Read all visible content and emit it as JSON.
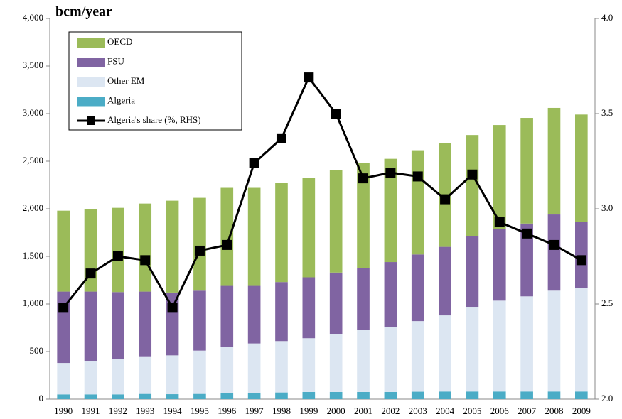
{
  "chart_data": {
    "type": "stacked_bar_line",
    "title": "bcm/year",
    "categories": [
      "1990",
      "1991",
      "1992",
      "1993",
      "1994",
      "1995",
      "1996",
      "1997",
      "1998",
      "1999",
      "2000",
      "2001",
      "2002",
      "2003",
      "2004",
      "2005",
      "2006",
      "2007",
      "2008",
      "2009"
    ],
    "series": [
      {
        "name": "OECD",
        "color": "#9bbb59",
        "values": [
          850,
          870,
          885,
          925,
          965,
          975,
          1030,
          1030,
          1040,
          1045,
          1075,
          1100,
          1085,
          1095,
          1090,
          1065,
          1090,
          1110,
          1120,
          1130
        ]
      },
      {
        "name": "FSU",
        "color": "#8064a2",
        "values": [
          750,
          730,
          705,
          680,
          660,
          630,
          645,
          605,
          620,
          640,
          645,
          650,
          680,
          700,
          720,
          740,
          755,
          765,
          800,
          690
        ]
      },
      {
        "name": "Other EM",
        "color": "#dce6f2",
        "values": [
          330,
          350,
          370,
          395,
          408,
          455,
          485,
          520,
          540,
          565,
          610,
          655,
          685,
          742,
          800,
          890,
          955,
          1000,
          1060,
          1090
        ]
      },
      {
        "name": "Algeria",
        "color": "#4bacc6",
        "values": [
          50,
          50,
          50,
          55,
          52,
          55,
          60,
          65,
          70,
          75,
          75,
          75,
          75,
          78,
          80,
          80,
          80,
          80,
          80,
          80
        ]
      },
      {
        "name": "Algeria's share (%, RHS)",
        "color": "#000000",
        "axis": "y2",
        "values": [
          2.48,
          2.66,
          2.75,
          2.73,
          2.48,
          2.78,
          2.81,
          3.24,
          3.37,
          3.69,
          3.5,
          3.16,
          3.19,
          3.17,
          3.05,
          3.18,
          2.93,
          2.87,
          2.81,
          2.73
        ]
      }
    ],
    "ylim": [
      0,
      4000
    ],
    "yticks": [
      0,
      500,
      {
        "value": 1000,
        "label": "1,000"
      },
      {
        "value": 1500,
        "label": "1,500"
      },
      {
        "value": 2000,
        "label": "2,000"
      },
      {
        "value": 2500,
        "label": "2,500"
      },
      {
        "value": 3000,
        "label": "3,000"
      },
      {
        "value": 3500,
        "label": "3,500"
      },
      {
        "value": 4000,
        "label": "4,000"
      }
    ],
    "y2lim": [
      2,
      4
    ],
    "y2ticks": [
      {
        "value": 2,
        "label": "2.0"
      },
      2.5,
      {
        "value": 3,
        "label": "3.0"
      },
      3.5,
      {
        "value": 4,
        "label": "4.0"
      }
    ]
  }
}
